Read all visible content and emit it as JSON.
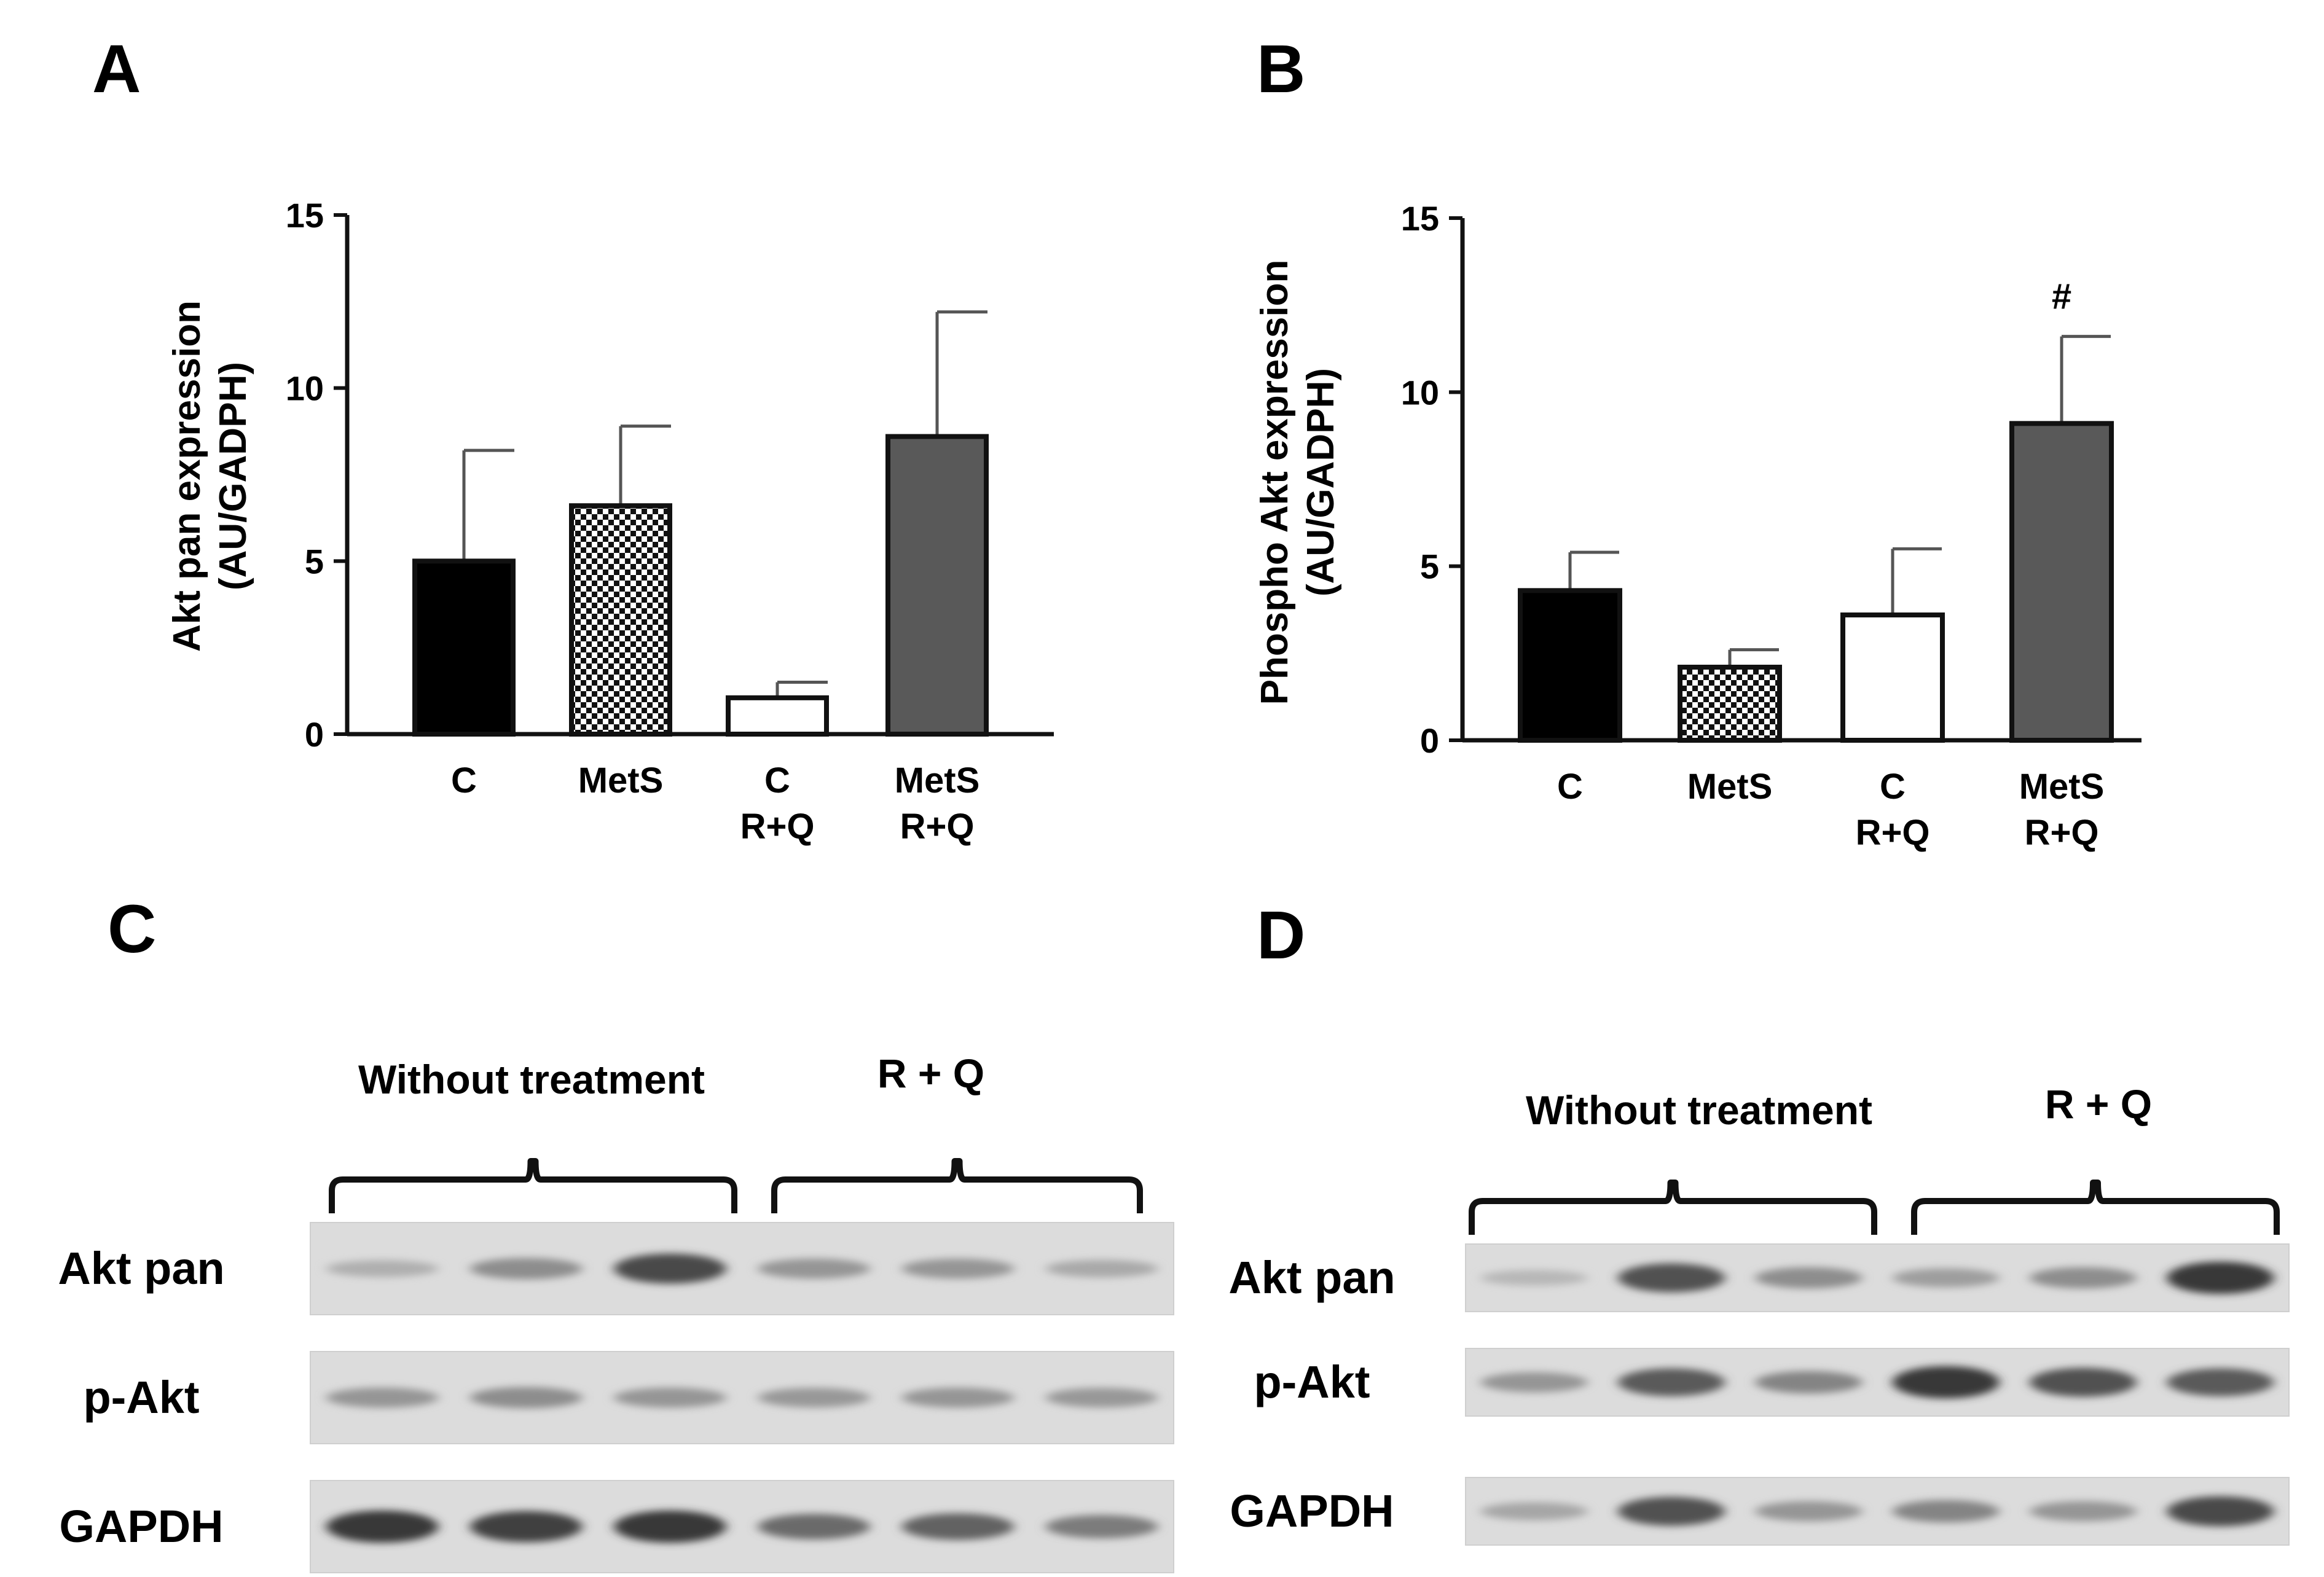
{
  "panels": {
    "a": "A",
    "b": "B",
    "c": "C",
    "d": "D"
  },
  "chart_data": [
    {
      "type": "bar",
      "panel": "A",
      "ylabel_line1": "Akt pan expression",
      "ylabel_line2": "(AU/GADPH)",
      "ylim": [
        0,
        15
      ],
      "yticks": [
        "0",
        "5",
        "10",
        "15"
      ],
      "categories": [
        {
          "line1": "C",
          "line2": ""
        },
        {
          "line1": "MetS",
          "line2": ""
        },
        {
          "line1": "C",
          "line2": "R+Q"
        },
        {
          "line1": "MetS",
          "line2": "R+Q"
        }
      ],
      "values": [
        5.0,
        6.6,
        1.05,
        8.6
      ],
      "errors": [
        3.2,
        2.3,
        0.45,
        3.6
      ],
      "fills": [
        "#000000",
        "checker",
        "#ffffff",
        "#595959"
      ],
      "annotations": [
        "",
        "",
        "",
        ""
      ]
    },
    {
      "type": "bar",
      "panel": "B",
      "ylabel_line1": "Phospho Akt expression",
      "ylabel_line2": "(AU/GADPH)",
      "ylim": [
        0,
        15
      ],
      "yticks": [
        "0",
        "5",
        "10",
        "15"
      ],
      "categories": [
        {
          "line1": "C",
          "line2": ""
        },
        {
          "line1": "MetS",
          "line2": ""
        },
        {
          "line1": "C",
          "line2": "R+Q"
        },
        {
          "line1": "MetS",
          "line2": "R+Q"
        }
      ],
      "values": [
        4.3,
        2.1,
        3.6,
        9.1
      ],
      "errors": [
        1.1,
        0.5,
        1.9,
        2.5
      ],
      "fills": [
        "#000000",
        "checker",
        "#ffffff",
        "#595959"
      ],
      "annotations": [
        "",
        "",
        "",
        "#"
      ]
    }
  ],
  "blots": [
    {
      "panel": "C",
      "group1": "Without treatment",
      "group2": "R + Q",
      "rows": [
        {
          "label": "Akt pan",
          "intensities": [
            0.15,
            0.35,
            0.75,
            0.3,
            0.3,
            0.18
          ]
        },
        {
          "label": "p-Akt",
          "intensities": [
            0.3,
            0.35,
            0.3,
            0.28,
            0.3,
            0.28
          ]
        },
        {
          "label": "GAPDH",
          "intensities": [
            0.85,
            0.8,
            0.85,
            0.55,
            0.6,
            0.45
          ]
        }
      ]
    },
    {
      "panel": "D",
      "group1": "Without treatment",
      "group2": "R + Q",
      "rows": [
        {
          "label": "Akt pan",
          "intensities": [
            0.1,
            0.7,
            0.35,
            0.25,
            0.35,
            0.85
          ]
        },
        {
          "label": "p-Akt",
          "intensities": [
            0.3,
            0.65,
            0.4,
            0.85,
            0.7,
            0.65
          ]
        },
        {
          "label": "GAPDH",
          "intensities": [
            0.2,
            0.7,
            0.3,
            0.4,
            0.3,
            0.75
          ]
        }
      ]
    }
  ]
}
